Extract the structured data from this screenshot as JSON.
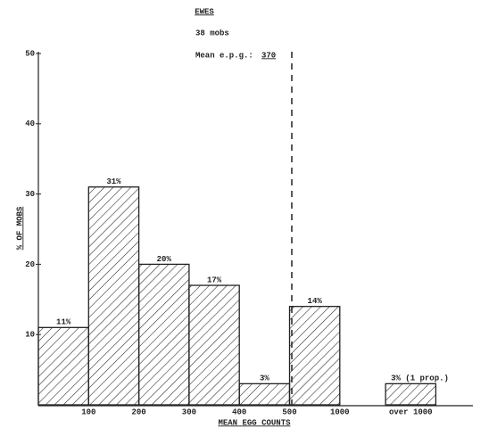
{
  "chart_data": {
    "type": "bar",
    "title": "EWES",
    "subtitle": "38 mobs",
    "mean_label": "Mean e.p.g.:",
    "mean_value": 370,
    "ylabel": "% OF MOBS",
    "xlabel": "MEAN EGG COUNTS",
    "categories": [
      null,
      null,
      null,
      null,
      null,
      null,
      null,
      "over 1000"
    ],
    "edge_labels": [
      "100",
      "200",
      "300",
      "400",
      "500",
      "1000"
    ],
    "values": [
      11,
      31,
      20,
      17,
      3,
      14,
      null,
      3
    ],
    "value_labels": [
      "11%",
      "31%",
      "20%",
      "17%",
      "3%",
      "14%",
      null,
      "3% (1 prop.)"
    ],
    "ylim": [
      0,
      50
    ],
    "yticks": [
      10,
      20,
      30,
      40,
      50
    ],
    "color": "#222222"
  }
}
